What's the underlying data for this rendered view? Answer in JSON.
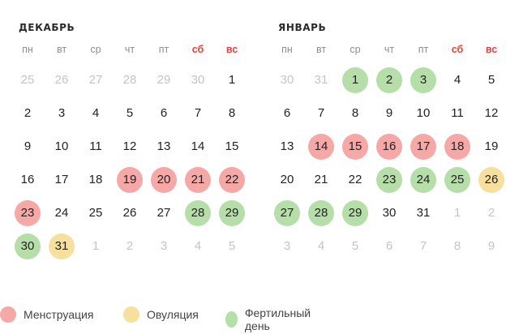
{
  "weekdays": [
    "пн",
    "вт",
    "ср",
    "чт",
    "пт",
    "сб",
    "вс"
  ],
  "weekend_color": "#e0433b",
  "status_colors": {
    "menstruation": "#f6a8a6",
    "ovulation": "#f7df9e",
    "fertile": "#b5dea8"
  },
  "months": [
    {
      "title": "ДЕКАБРЬ",
      "weeks": [
        [
          {
            "d": "25",
            "o": true
          },
          {
            "d": "26",
            "o": true
          },
          {
            "d": "27",
            "o": true
          },
          {
            "d": "28",
            "o": true
          },
          {
            "d": "29",
            "o": true
          },
          {
            "d": "30",
            "o": true
          },
          {
            "d": "1"
          }
        ],
        [
          {
            "d": "2"
          },
          {
            "d": "3"
          },
          {
            "d": "4"
          },
          {
            "d": "5"
          },
          {
            "d": "6"
          },
          {
            "d": "7"
          },
          {
            "d": "8"
          }
        ],
        [
          {
            "d": "9"
          },
          {
            "d": "10"
          },
          {
            "d": "11"
          },
          {
            "d": "12"
          },
          {
            "d": "13"
          },
          {
            "d": "14"
          },
          {
            "d": "15"
          }
        ],
        [
          {
            "d": "16"
          },
          {
            "d": "17"
          },
          {
            "d": "18"
          },
          {
            "d": "19",
            "s": "menstruation"
          },
          {
            "d": "20",
            "s": "menstruation"
          },
          {
            "d": "21",
            "s": "menstruation"
          },
          {
            "d": "22",
            "s": "menstruation"
          }
        ],
        [
          {
            "d": "23",
            "s": "menstruation"
          },
          {
            "d": "24"
          },
          {
            "d": "25"
          },
          {
            "d": "26"
          },
          {
            "d": "27"
          },
          {
            "d": "28",
            "s": "fertile"
          },
          {
            "d": "29",
            "s": "fertile"
          }
        ],
        [
          {
            "d": "30",
            "s": "fertile"
          },
          {
            "d": "31",
            "s": "ovulation"
          },
          {
            "d": "1",
            "o": true
          },
          {
            "d": "2",
            "o": true
          },
          {
            "d": "3",
            "o": true
          },
          {
            "d": "4",
            "o": true
          },
          {
            "d": "5",
            "o": true
          }
        ]
      ]
    },
    {
      "title": "ЯНВАРЬ",
      "weeks": [
        [
          {
            "d": "30",
            "o": true
          },
          {
            "d": "31",
            "o": true
          },
          {
            "d": "1",
            "s": "fertile"
          },
          {
            "d": "2",
            "s": "fertile"
          },
          {
            "d": "3",
            "s": "fertile"
          },
          {
            "d": "4"
          },
          {
            "d": "5"
          }
        ],
        [
          {
            "d": "6"
          },
          {
            "d": "7"
          },
          {
            "d": "8"
          },
          {
            "d": "9"
          },
          {
            "d": "10"
          },
          {
            "d": "11"
          },
          {
            "d": "12"
          }
        ],
        [
          {
            "d": "13"
          },
          {
            "d": "14",
            "s": "menstruation"
          },
          {
            "d": "15",
            "s": "menstruation"
          },
          {
            "d": "16",
            "s": "menstruation"
          },
          {
            "d": "17",
            "s": "menstruation"
          },
          {
            "d": "18",
            "s": "menstruation"
          },
          {
            "d": "19"
          }
        ],
        [
          {
            "d": "20"
          },
          {
            "d": "21"
          },
          {
            "d": "22"
          },
          {
            "d": "23",
            "s": "fertile"
          },
          {
            "d": "24",
            "s": "fertile"
          },
          {
            "d": "25",
            "s": "fertile"
          },
          {
            "d": "26",
            "s": "ovulation"
          }
        ],
        [
          {
            "d": "27",
            "s": "fertile"
          },
          {
            "d": "28",
            "s": "fertile"
          },
          {
            "d": "29",
            "s": "fertile"
          },
          {
            "d": "30"
          },
          {
            "d": "31"
          },
          {
            "d": "1",
            "o": true
          },
          {
            "d": "2",
            "o": true
          }
        ],
        [
          {
            "d": "3",
            "o": true
          },
          {
            "d": "4",
            "o": true
          },
          {
            "d": "5",
            "o": true
          },
          {
            "d": "6",
            "o": true
          },
          {
            "d": "7",
            "o": true
          },
          {
            "d": "8",
            "o": true
          },
          {
            "d": "9",
            "o": true
          }
        ]
      ]
    }
  ],
  "legend": {
    "menstruation": "Менструация",
    "ovulation": "Овуляция",
    "fertile": "Фертильный день"
  }
}
